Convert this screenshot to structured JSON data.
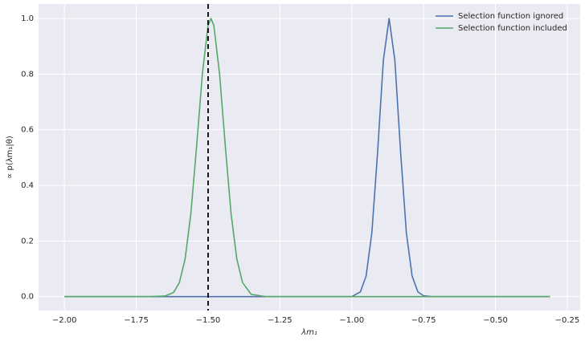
{
  "chart_data": {
    "type": "line",
    "xlabel": "λm₁",
    "ylabel": "∝ p(λm₁|θ)",
    "x": [
      -2.0,
      -1.8,
      -1.7,
      -1.65,
      -1.62,
      -1.6,
      -1.58,
      -1.56,
      -1.54,
      -1.52,
      -1.5,
      -1.49,
      -1.48,
      -1.46,
      -1.44,
      -1.42,
      -1.4,
      -1.38,
      -1.35,
      -1.3,
      -1.2,
      -1.1,
      -1.0,
      -0.97,
      -0.95,
      -0.93,
      -0.91,
      -0.89,
      -0.87,
      -0.85,
      -0.83,
      -0.81,
      -0.79,
      -0.77,
      -0.75,
      -0.72,
      -0.6,
      -0.45,
      -0.31
    ],
    "series": [
      {
        "name": "Selection function ignored",
        "color": "#4c72b0",
        "values": [
          0,
          0,
          0,
          0,
          0,
          0,
          0,
          0,
          0,
          0,
          0,
          0,
          0,
          0,
          0,
          0,
          0,
          0,
          0,
          0,
          0,
          0,
          0,
          0.017,
          0.074,
          0.23,
          0.52,
          0.85,
          1.0,
          0.85,
          0.52,
          0.23,
          0.074,
          0.017,
          0.003,
          0,
          0,
          0,
          0
        ]
      },
      {
        "name": "Selection function included",
        "color": "#55a868",
        "values": [
          0,
          0,
          0,
          0.002,
          0.015,
          0.05,
          0.135,
          0.298,
          0.54,
          0.8,
          0.975,
          1.0,
          0.975,
          0.8,
          0.54,
          0.298,
          0.135,
          0.05,
          0.008,
          0,
          0,
          0,
          0,
          0,
          0,
          0,
          0,
          0,
          0,
          0,
          0,
          0,
          0,
          0,
          0,
          0,
          0,
          0,
          0
        ]
      }
    ],
    "vline": {
      "x": -1.5,
      "color": "#000000"
    },
    "xlim": [
      -2.09,
      -0.205
    ],
    "ylim": [
      -0.05,
      1.052
    ],
    "xticks": [
      {
        "value": -2.0,
        "label": "−2.00"
      },
      {
        "value": -1.75,
        "label": "−1.75"
      },
      {
        "value": -1.5,
        "label": "−1.50"
      },
      {
        "value": -1.25,
        "label": "−1.25"
      },
      {
        "value": -1.0,
        "label": "−1.00"
      },
      {
        "value": -0.75,
        "label": "−0.75"
      },
      {
        "value": -0.5,
        "label": "−0.50"
      },
      {
        "value": -0.25,
        "label": "−0.25"
      }
    ],
    "yticks": [
      {
        "value": 0,
        "label": "0.0"
      },
      0.2,
      0.4,
      0.6,
      0.8,
      {
        "value": 1,
        "label": "1.0"
      }
    ],
    "grid": true,
    "legend": "upper right"
  }
}
